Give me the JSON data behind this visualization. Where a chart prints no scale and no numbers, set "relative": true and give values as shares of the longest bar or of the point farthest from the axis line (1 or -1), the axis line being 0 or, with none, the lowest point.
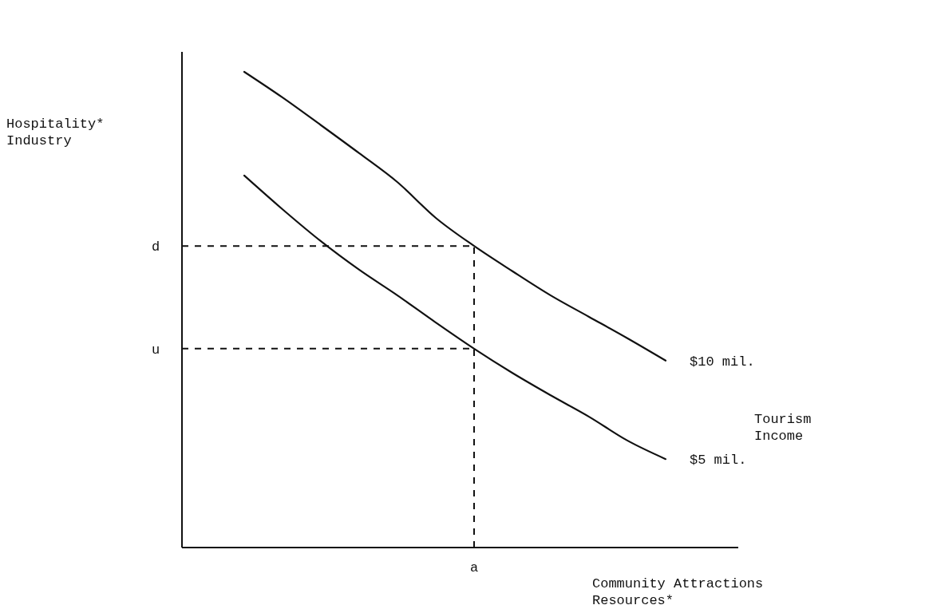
{
  "chart_data": {
    "type": "line",
    "relative": true,
    "annotations": [
      "Hospitality*\nIndustry",
      "a"
    ],
    "xlabel": "Community Attractions\nResources*",
    "legend_title": "Tourism\nIncome",
    "categories": [
      null,
      null,
      null,
      null,
      null,
      null,
      null,
      null,
      null,
      null,
      null,
      null,
      null,
      null
    ],
    "series": [
      {
        "name": "$10 mil.",
        "color": "#111111",
        "values": [
          null,
          1.0,
          0.946,
          0.888,
          0.829,
          0.768,
          0.693,
          0.634,
          0.581,
          0.53,
          0.485,
          0.44,
          0.393,
          null
        ]
      },
      {
        "name": "$5 mil.",
        "color": "#111111",
        "values": [
          null,
          0.782,
          0.711,
          0.644,
          0.584,
          0.53,
          0.473,
          0.418,
          0.367,
          0.32,
          0.275,
          0.225,
          0.186,
          null
        ]
      }
    ],
    "ref_lines": [
      {
        "axis": "y",
        "value": 0.634,
        "label": "d",
        "line_style": "dashed"
      },
      {
        "axis": "y",
        "value": 0.418,
        "label": "u",
        "line_style": "dashed"
      }
    ]
  }
}
